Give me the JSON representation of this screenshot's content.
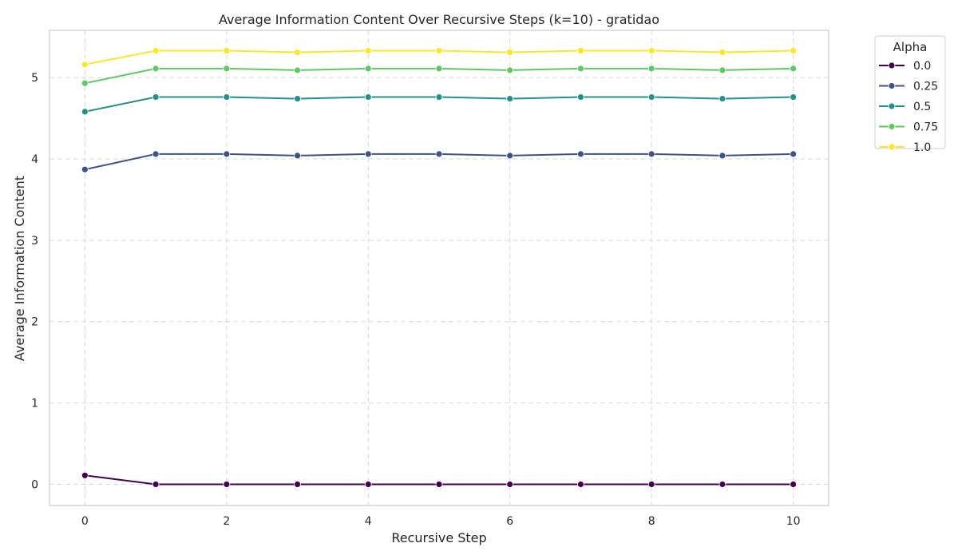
{
  "chart_data": {
    "type": "line",
    "title": "Average Information Content Over Recursive Steps (k=10) - gratidao",
    "xlabel": "Recursive Step",
    "ylabel": "Average Information Content",
    "x": [
      0,
      1,
      2,
      3,
      4,
      5,
      6,
      7,
      8,
      9,
      10
    ],
    "xlim": [
      -0.5,
      10.5
    ],
    "ylim": [
      -0.26,
      5.58
    ],
    "xticks": [
      0,
      2,
      4,
      6,
      8,
      10
    ],
    "yticks": [
      0,
      1,
      2,
      3,
      4,
      5
    ],
    "grid": true,
    "legend": {
      "title": "Alpha",
      "placement": "outside-top-right"
    },
    "series": [
      {
        "name": "0.0",
        "color": "#440154",
        "values": [
          0.11,
          0.0,
          0.0,
          0.0,
          0.0,
          0.0,
          0.0,
          0.0,
          0.0,
          0.0,
          0.0
        ]
      },
      {
        "name": "0.25",
        "color": "#3b528b",
        "values": [
          3.87,
          4.06,
          4.06,
          4.04,
          4.06,
          4.06,
          4.04,
          4.06,
          4.06,
          4.04,
          4.06
        ]
      },
      {
        "name": "0.5",
        "color": "#21918c",
        "values": [
          4.58,
          4.76,
          4.76,
          4.74,
          4.76,
          4.76,
          4.74,
          4.76,
          4.76,
          4.74,
          4.76
        ]
      },
      {
        "name": "0.75",
        "color": "#5ec962",
        "values": [
          4.93,
          5.11,
          5.11,
          5.09,
          5.11,
          5.11,
          5.09,
          5.11,
          5.11,
          5.09,
          5.11
        ]
      },
      {
        "name": "1.0",
        "color": "#fde725",
        "values": [
          5.16,
          5.33,
          5.33,
          5.31,
          5.33,
          5.33,
          5.31,
          5.33,
          5.33,
          5.31,
          5.33
        ]
      }
    ]
  }
}
